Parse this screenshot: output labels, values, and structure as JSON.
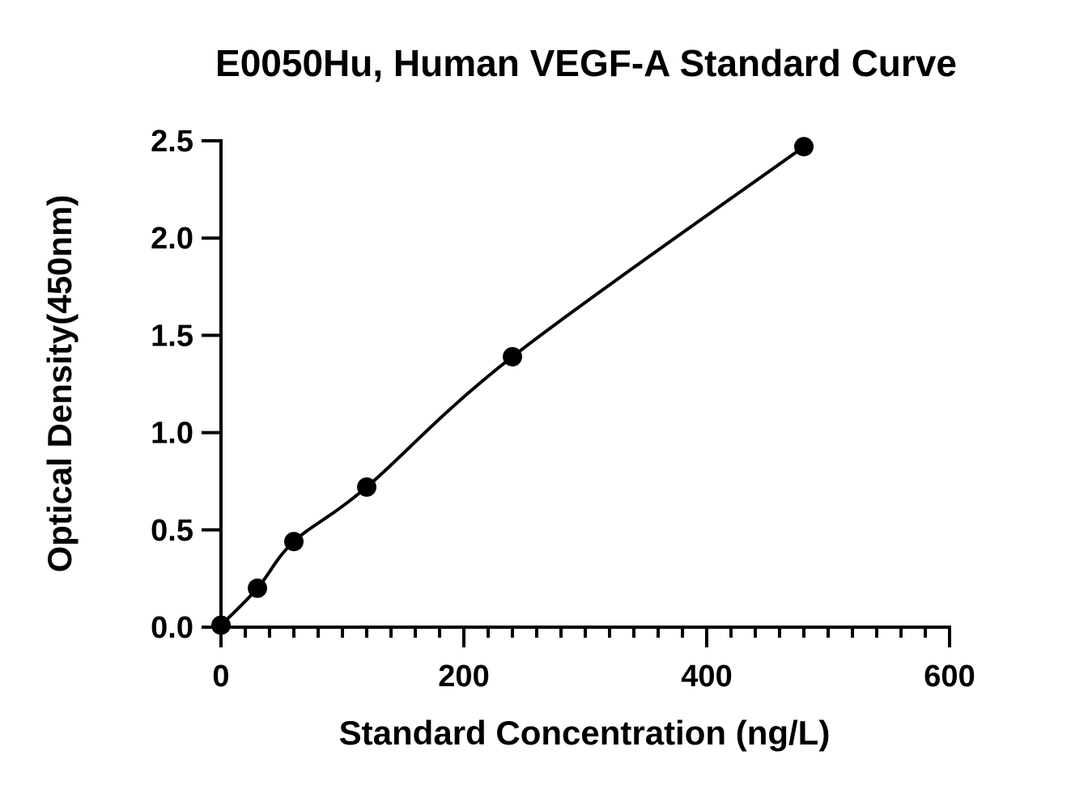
{
  "chart_data": {
    "type": "scatter",
    "title": "E0050Hu, Human VEGF-A Standard Curve",
    "xlabel": "Standard Concentration (ng/L)",
    "ylabel": "Optical Density(450nm)",
    "xlim": [
      0,
      600
    ],
    "ylim": [
      0,
      2.5
    ],
    "x_ticks": [
      0,
      200,
      400,
      600
    ],
    "y_ticks": [
      0.0,
      0.5,
      1.0,
      1.5,
      2.0,
      2.5
    ],
    "x_tick_labels": [
      "0",
      "200",
      "400",
      "600"
    ],
    "y_tick_labels": [
      "0.0",
      "0.5",
      "1.0",
      "1.5",
      "2.0",
      "2.5"
    ],
    "x_minor_step": 20,
    "grid": false,
    "legend": "none",
    "series": [
      {
        "x": [
          0,
          30,
          60,
          120,
          240,
          480
        ],
        "y": [
          0.01,
          0.2,
          0.44,
          0.72,
          1.39,
          2.47
        ],
        "marker": "circle",
        "fit_curve": true
      }
    ],
    "colors": {
      "marks": "#000000",
      "background": "#ffffff"
    }
  }
}
